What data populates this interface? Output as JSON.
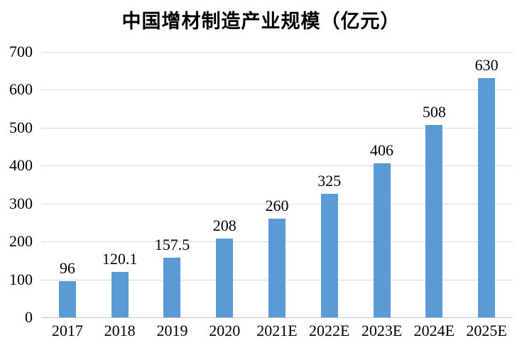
{
  "chart_data": {
    "type": "bar",
    "title": "中国增材制造产业规模（亿元）",
    "categories": [
      "2017",
      "2018",
      "2019",
      "2020",
      "2021E",
      "2022E",
      "2023E",
      "2024E",
      "2025E"
    ],
    "values": [
      96,
      120.1,
      157.5,
      208,
      260,
      325,
      406,
      508,
      630
    ],
    "value_labels": [
      "96",
      "120.1",
      "157.5",
      "208",
      "260",
      "325",
      "406",
      "508",
      "630"
    ],
    "xlabel": "",
    "ylabel": "",
    "ylim": [
      0,
      700
    ],
    "yticks": [
      0,
      100,
      200,
      300,
      400,
      500,
      600,
      700
    ],
    "grid": "horizontal-only",
    "legend_position": "none",
    "colors": {
      "bar": "#5B9BD5",
      "gridline": "#D9D9D9",
      "baseline": "#C6C6C6",
      "text": "#000000",
      "background": "#FFFFFF"
    }
  }
}
